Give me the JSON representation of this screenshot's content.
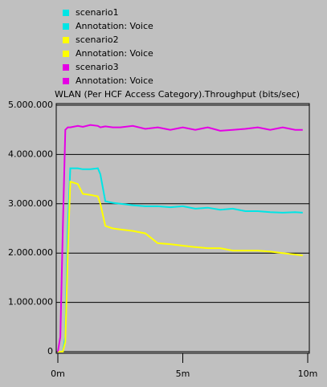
{
  "chart_data": {
    "type": "line",
    "title": "WLAN (Per HCF Access Category).Throughput (bits/sec)",
    "x": [
      0,
      0.1,
      0.2,
      0.3,
      0.4,
      0.5,
      0.8,
      1.0,
      1.3,
      1.6,
      1.7,
      1.9,
      2.2,
      2.5,
      3.0,
      3.5,
      4.0,
      4.5,
      5.0,
      5.5,
      6.0,
      6.5,
      7.0,
      7.5,
      8.0,
      8.5,
      9.0,
      9.5,
      9.8
    ],
    "series": [
      {
        "name": "scenario1",
        "annotation": "Annotation: Voice",
        "color": "#00e5e5",
        "values": [
          0,
          0,
          0,
          300000,
          2500000,
          3720000,
          3720000,
          3700000,
          3700000,
          3720000,
          3600000,
          3050000,
          3020000,
          3000000,
          2970000,
          2950000,
          2950000,
          2930000,
          2950000,
          2900000,
          2920000,
          2880000,
          2900000,
          2850000,
          2850000,
          2830000,
          2820000,
          2830000,
          2820000
        ]
      },
      {
        "name": "scenario2",
        "annotation": "Annotation: Voice",
        "color": "#ffff00",
        "values": [
          0,
          0,
          0,
          200000,
          2000000,
          3450000,
          3400000,
          3200000,
          3180000,
          3150000,
          3000000,
          2550000,
          2500000,
          2480000,
          2450000,
          2400000,
          2200000,
          2180000,
          2150000,
          2120000,
          2100000,
          2100000,
          2050000,
          2050000,
          2050000,
          2030000,
          2000000,
          1970000,
          1950000
        ]
      },
      {
        "name": "scenario3",
        "annotation": "Annotation: Voice",
        "color": "#e500e5",
        "values": [
          0,
          300000,
          2500000,
          4500000,
          4550000,
          4550000,
          4580000,
          4560000,
          4600000,
          4580000,
          4550000,
          4570000,
          4550000,
          4550000,
          4580000,
          4520000,
          4550000,
          4500000,
          4550000,
          4500000,
          4550000,
          4480000,
          4500000,
          4520000,
          4550000,
          4500000,
          4550000,
          4500000,
          4500000
        ]
      }
    ],
    "xlim": [
      0,
      10
    ],
    "xticks": [
      {
        "value": 0,
        "label": "0m"
      },
      {
        "value": 5,
        "label": "5m"
      },
      {
        "value": 10,
        "label": "10m"
      }
    ],
    "ylim": [
      0,
      5000000
    ],
    "yticks": [
      0,
      {
        "value": 1000000,
        "label": "1.000.000"
      },
      {
        "value": 2000000,
        "label": "2.000.000"
      },
      {
        "value": 3000000,
        "label": "3.000.000"
      },
      {
        "value": 4000000,
        "label": "4.000.000"
      },
      {
        "value": 5000000,
        "label": "5.000.000"
      }
    ],
    "grid": true
  }
}
